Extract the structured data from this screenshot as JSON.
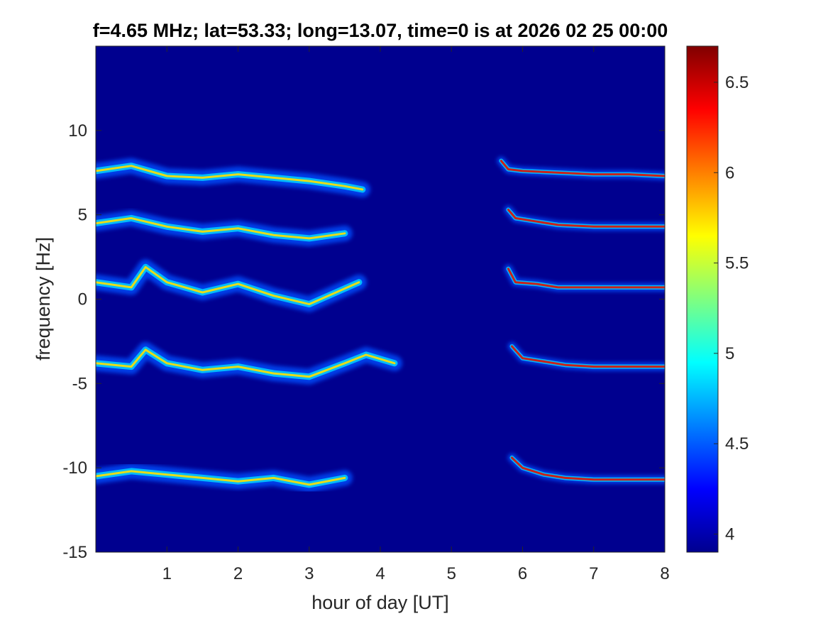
{
  "chart_data": {
    "type": "heatmap",
    "title": "f=4.65 MHz;  lat=53.33; long=13.07, time=0 is at 2026 02 25 00:00",
    "xlabel": "hour of day [UT]",
    "ylabel": "frequency [Hz]",
    "xlim": [
      0,
      8
    ],
    "ylim": [
      -15,
      15
    ],
    "x_ticks": [
      1,
      2,
      3,
      4,
      5,
      6,
      7,
      8
    ],
    "x_tick_labels": [
      "1",
      "2",
      "3",
      "4",
      "5",
      "6",
      "7",
      "8"
    ],
    "y_ticks": [
      -15,
      -10,
      -5,
      0,
      5,
      10
    ],
    "y_tick_labels": [
      "-15",
      "-10",
      "-5",
      "0",
      "5",
      "10"
    ],
    "colorbar": {
      "colormap": "jet",
      "range": [
        3.9,
        6.7
      ],
      "ticks": [
        4,
        4.5,
        5,
        5.5,
        6,
        6.5
      ],
      "tick_labels": [
        "4",
        "4.5",
        "5",
        "5.5",
        "6",
        "6.5"
      ]
    },
    "background_color": "#00008f",
    "traces_night": [
      {
        "name": "",
        "x": [
          0,
          0.5,
          1,
          1.5,
          2,
          2.5,
          3,
          3.5,
          3.75
        ],
        "y": [
          7.6,
          7.9,
          7.3,
          7.2,
          7.4,
          7.2,
          7.0,
          6.7,
          6.5
        ]
      },
      {
        "name": "",
        "x": [
          0,
          0.5,
          1,
          1.5,
          2,
          2.5,
          3,
          3.5
        ],
        "y": [
          4.5,
          4.8,
          4.3,
          4.0,
          4.2,
          3.8,
          3.6,
          3.9
        ]
      },
      {
        "name": "",
        "x": [
          0,
          0.5,
          0.7,
          1.0,
          1.5,
          2.0,
          2.5,
          3.0,
          3.7
        ],
        "y": [
          1.0,
          0.7,
          1.9,
          1.0,
          0.4,
          0.9,
          0.2,
          -0.3,
          1.0
        ]
      },
      {
        "name": "",
        "x": [
          0,
          0.5,
          0.7,
          1.0,
          1.5,
          2.0,
          2.5,
          3.0,
          3.5,
          3.8,
          4.2
        ],
        "y": [
          -3.8,
          -4.0,
          -3.0,
          -3.8,
          -4.2,
          -4.0,
          -4.4,
          -4.6,
          -3.8,
          -3.3,
          -3.8
        ]
      },
      {
        "name": "",
        "x": [
          0,
          0.5,
          1,
          1.5,
          2,
          2.5,
          3,
          3.5
        ],
        "y": [
          -10.5,
          -10.2,
          -10.4,
          -10.6,
          -10.8,
          -10.6,
          -11.0,
          -10.6
        ]
      }
    ],
    "traces_morning": [
      {
        "name": "",
        "x": [
          5.7,
          5.8,
          6.0,
          6.5,
          7.0,
          7.5,
          8.0
        ],
        "y": [
          8.2,
          7.7,
          7.6,
          7.5,
          7.4,
          7.4,
          7.3
        ]
      },
      {
        "name": "",
        "x": [
          5.8,
          5.9,
          6.2,
          6.5,
          7.0,
          7.5,
          8.0
        ],
        "y": [
          5.3,
          4.8,
          4.6,
          4.4,
          4.3,
          4.3,
          4.3
        ]
      },
      {
        "name": "",
        "x": [
          5.8,
          5.9,
          6.2,
          6.5,
          7.0,
          7.5,
          8.0
        ],
        "y": [
          1.8,
          1.0,
          0.9,
          0.7,
          0.7,
          0.7,
          0.7
        ]
      },
      {
        "name": "",
        "x": [
          5.85,
          6.0,
          6.3,
          6.6,
          7.0,
          7.5,
          8.0
        ],
        "y": [
          -2.8,
          -3.5,
          -3.7,
          -3.9,
          -4.0,
          -4.0,
          -4.0
        ]
      },
      {
        "name": "",
        "x": [
          5.85,
          6.0,
          6.3,
          6.6,
          7.0,
          7.5,
          8.0
        ],
        "y": [
          -9.4,
          -10.0,
          -10.4,
          -10.6,
          -10.7,
          -10.7,
          -10.7
        ]
      }
    ]
  }
}
